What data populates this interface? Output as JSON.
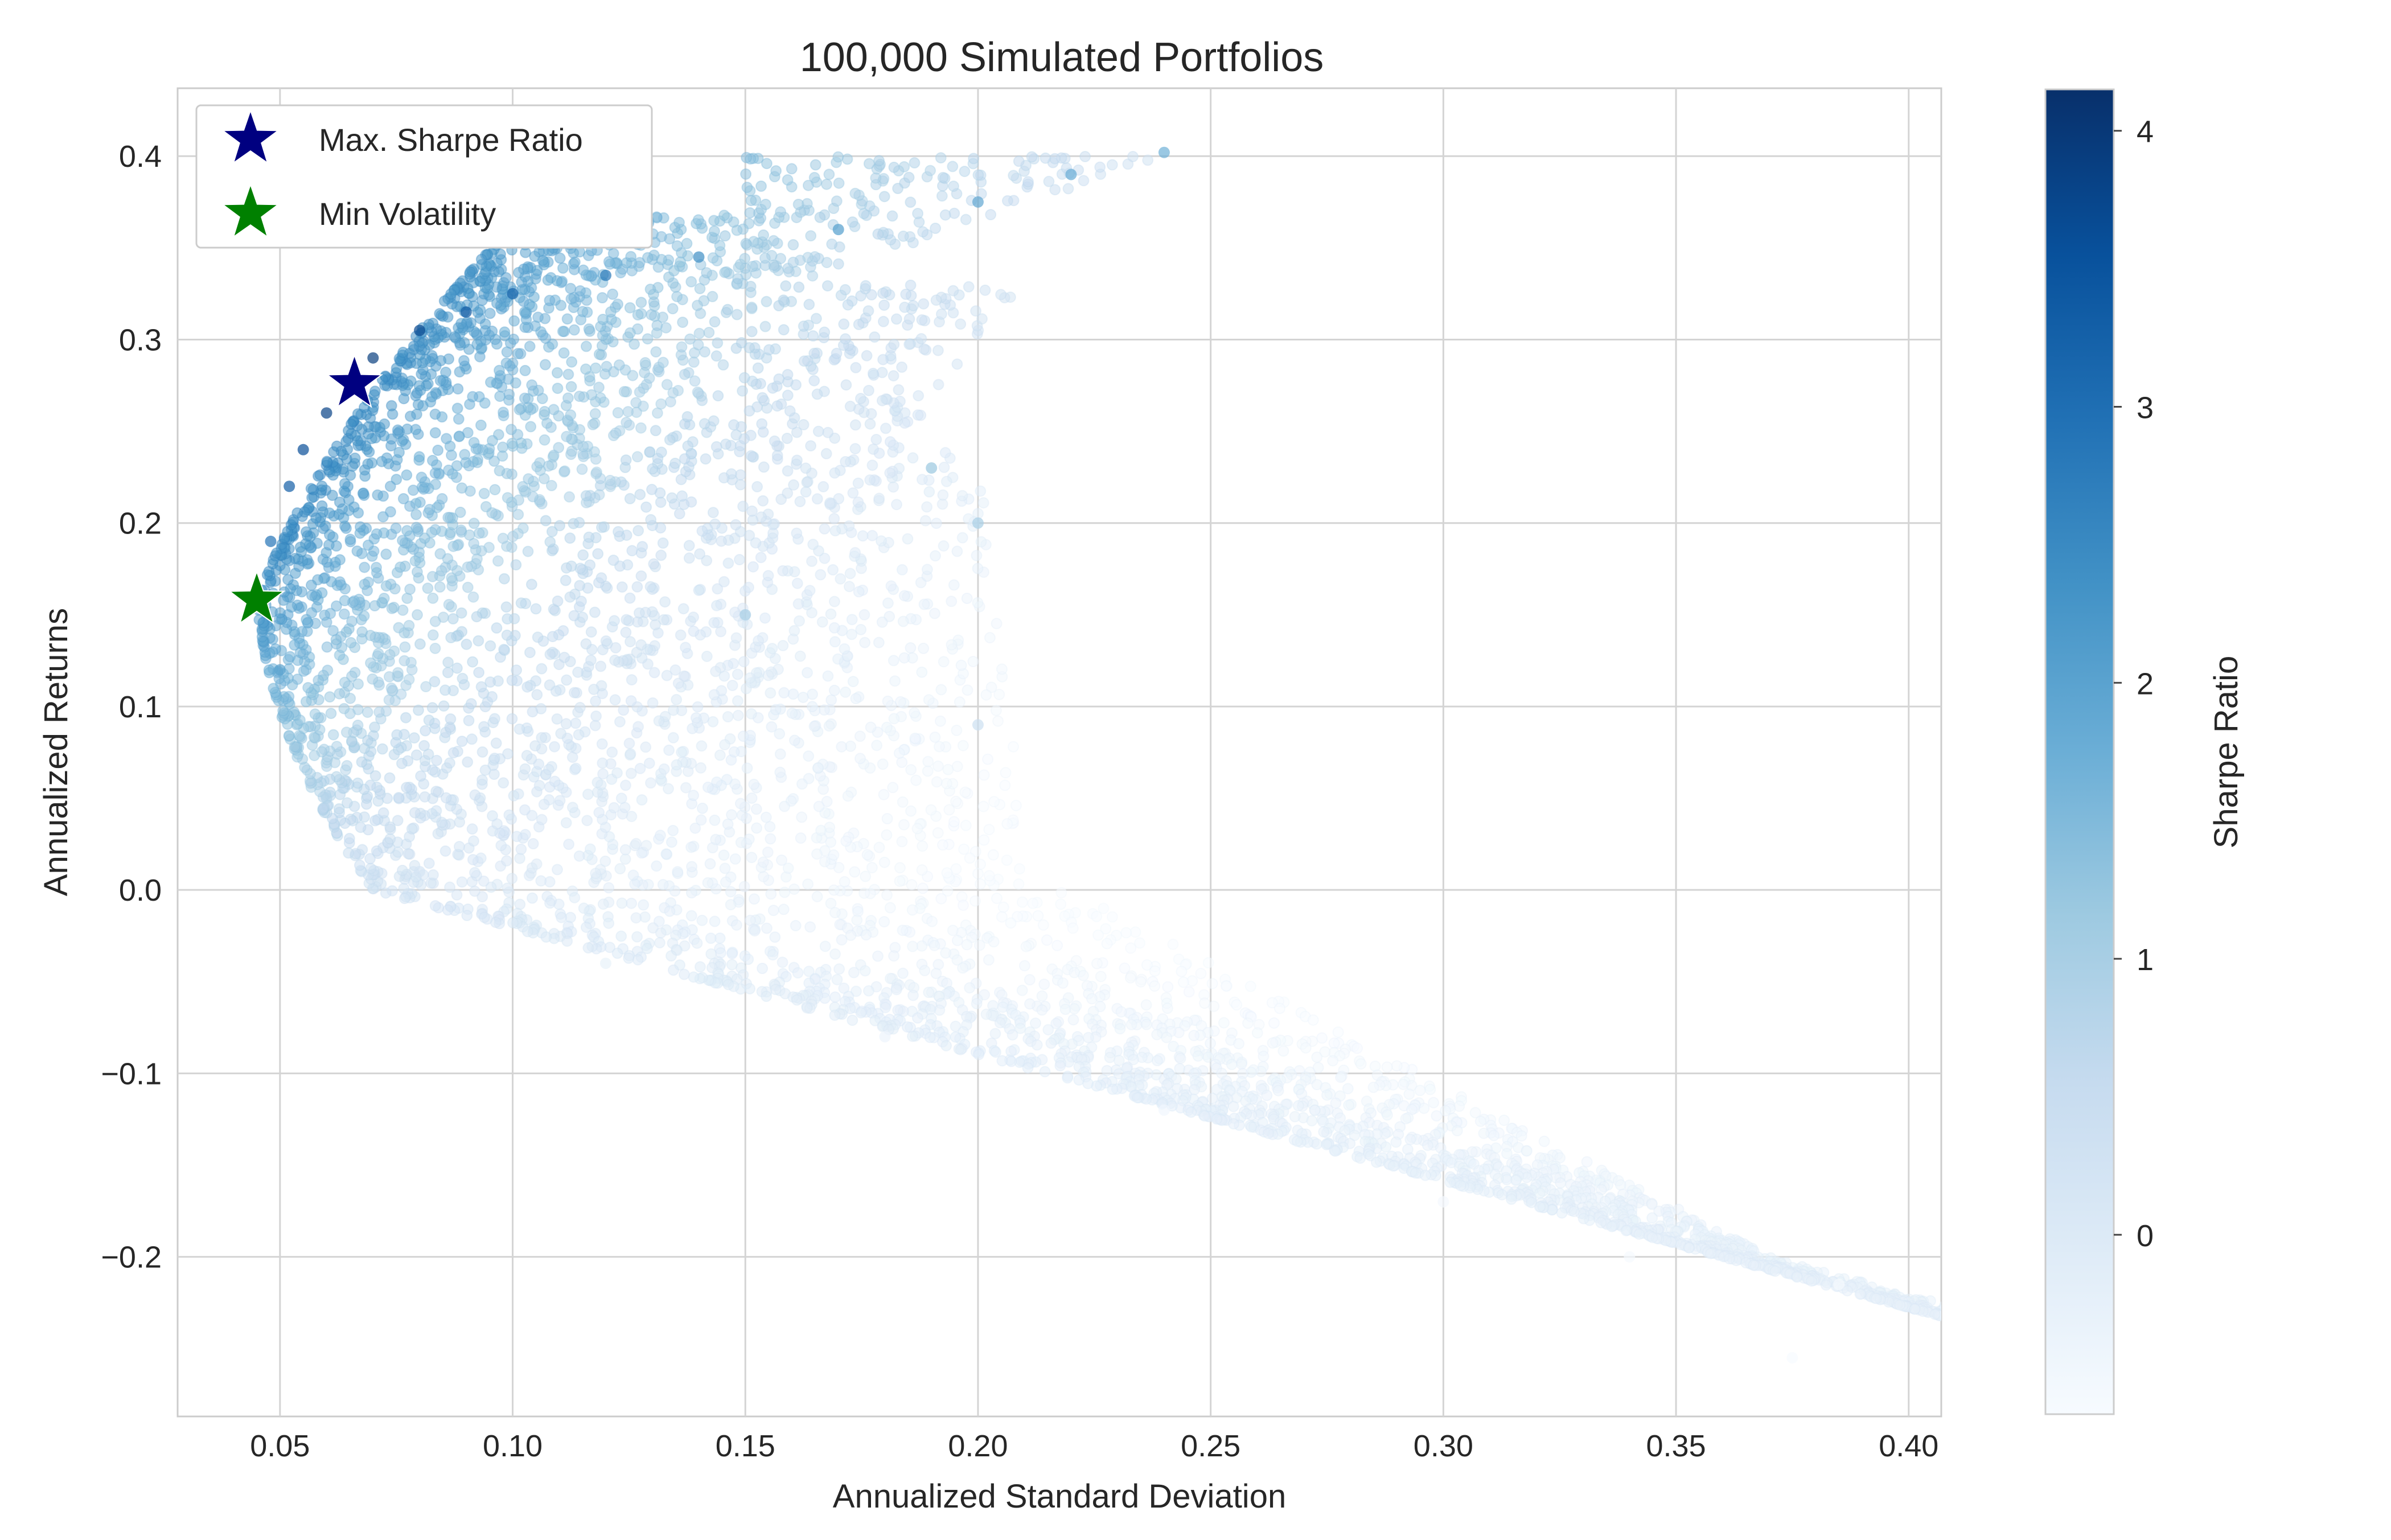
{
  "chart_data": {
    "type": "scatter",
    "title": "100,000 Simulated Portfolios",
    "xlabel": "Annualized Standard Deviation",
    "ylabel": "Annualized Returns",
    "xlim": [
      0.028,
      0.407
    ],
    "ylim": [
      -0.287,
      0.437
    ],
    "x_ticks": [
      0.05,
      0.1,
      0.15,
      0.2,
      0.25,
      0.3,
      0.35,
      0.4
    ],
    "x_tick_labels": [
      "0.05",
      "0.10",
      "0.15",
      "0.20",
      "0.25",
      "0.30",
      "0.35",
      "0.40"
    ],
    "y_ticks": [
      -0.2,
      -0.1,
      0.0,
      0.1,
      0.2,
      0.3,
      0.4
    ],
    "y_tick_labels": [
      "−0.2",
      "−0.1",
      "0.0",
      "0.1",
      "0.2",
      "0.3",
      "0.4"
    ],
    "grid": true,
    "colormap": "Blues",
    "cmap_stops": [
      "#f7fbff",
      "#deebf7",
      "#c6dbef",
      "#9ecae1",
      "#6baed6",
      "#4292c6",
      "#2171b5",
      "#08519c",
      "#08306b"
    ],
    "colorbar": {
      "label": "Sharpe Ratio",
      "range": [
        -0.65,
        4.15
      ],
      "ticks": [
        0,
        1,
        2,
        3,
        4
      ],
      "tick_labels": [
        "0",
        "1",
        "2",
        "3",
        "4"
      ]
    },
    "scatter_sample": {
      "description_points": "sampled frontier: [sd, return, sharpe]",
      "points": [
        [
          0.045,
          0.158,
          2.5
        ],
        [
          0.048,
          0.19,
          2.9
        ],
        [
          0.05,
          0.12,
          2.0
        ],
        [
          0.052,
          0.22,
          3.3
        ],
        [
          0.055,
          0.24,
          3.6
        ],
        [
          0.06,
          0.26,
          3.8
        ],
        [
          0.066,
          0.275,
          3.9
        ],
        [
          0.07,
          0.29,
          3.9
        ],
        [
          0.08,
          0.305,
          3.7
        ],
        [
          0.09,
          0.315,
          3.4
        ],
        [
          0.1,
          0.325,
          3.2
        ],
        [
          0.12,
          0.335,
          2.8
        ],
        [
          0.14,
          0.345,
          2.4
        ],
        [
          0.17,
          0.36,
          2.1
        ],
        [
          0.2,
          0.375,
          1.9
        ],
        [
          0.22,
          0.39,
          1.8
        ],
        [
          0.24,
          0.402,
          1.7
        ],
        [
          0.06,
          0.05,
          0.8
        ],
        [
          0.08,
          0.01,
          0.2
        ],
        [
          0.12,
          -0.04,
          -0.3
        ],
        [
          0.18,
          -0.08,
          -0.4
        ],
        [
          0.24,
          -0.12,
          -0.5
        ],
        [
          0.3,
          -0.17,
          -0.55
        ],
        [
          0.34,
          -0.2,
          -0.6
        ],
        [
          0.385,
          -0.215,
          -0.6
        ],
        [
          0.375,
          -0.255,
          -0.65
        ],
        [
          0.2,
          0.2,
          1.0
        ],
        [
          0.2,
          0.09,
          0.4
        ],
        [
          0.19,
          0.23,
          1.2
        ],
        [
          0.15,
          0.15,
          1.0
        ]
      ]
    },
    "series": [
      {
        "name": "Max. Sharpe Ratio",
        "x": [
          0.066
        ],
        "y": [
          0.276
        ],
        "color": "#000080",
        "marker": "star"
      },
      {
        "name": "Min Volatility",
        "x": [
          0.045
        ],
        "y": [
          0.158
        ],
        "color": "#008000",
        "marker": "star"
      }
    ],
    "legend_position": "upper-left"
  }
}
